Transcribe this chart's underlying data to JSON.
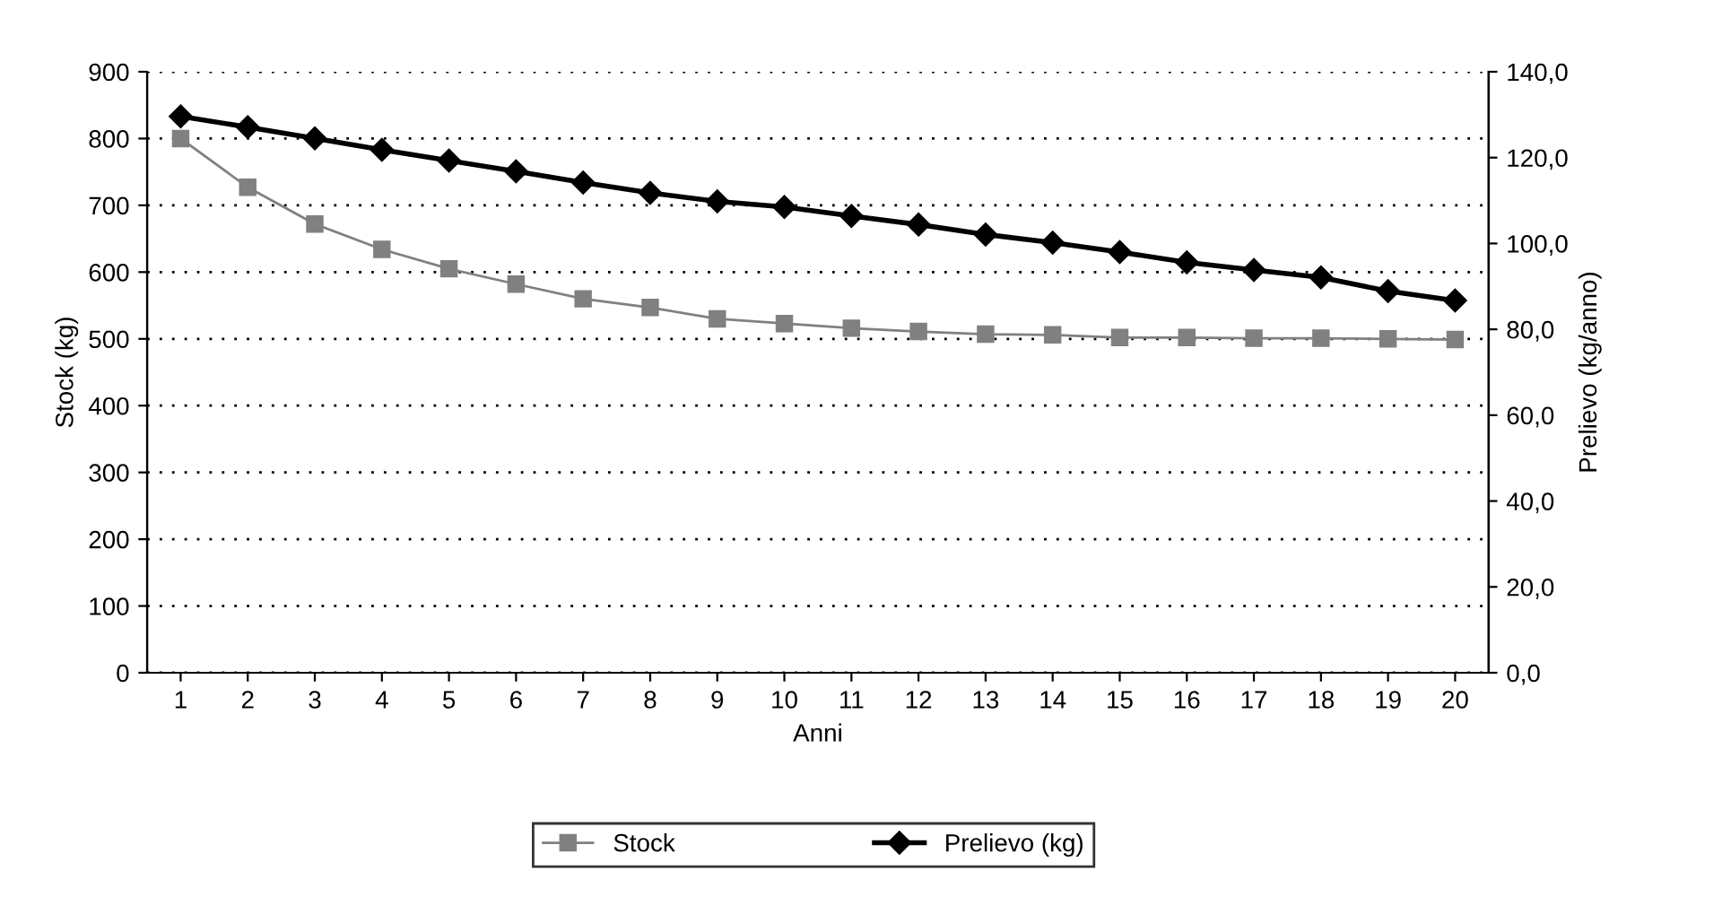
{
  "chart_data": {
    "type": "line",
    "xlabel": "Anni",
    "ylabel": "Stock (kg)",
    "y2label": "Prelievo (kg/anno)",
    "categories": [
      "1",
      "2",
      "3",
      "4",
      "5",
      "6",
      "7",
      "8",
      "9",
      "10",
      "11",
      "12",
      "13",
      "14",
      "15",
      "16",
      "17",
      "18",
      "19",
      "20"
    ],
    "series": [
      {
        "name": "Stock",
        "color": "#808080",
        "marker": "square",
        "values": [
          800,
          727,
          672,
          634,
          605,
          582,
          560,
          547,
          530,
          523,
          516,
          511,
          507,
          506,
          502,
          502,
          501,
          501,
          500,
          499
        ]
      },
      {
        "name": "Prelievo (kg)",
        "color": "#000000",
        "marker": "diamond",
        "axis": "y2",
        "values": [
          129.6,
          127.1,
          124.5,
          121.8,
          119.3,
          116.8,
          114.2,
          111.8,
          109.8,
          108.5,
          106.4,
          104.4,
          102.1,
          100.2,
          98.0,
          95.6,
          93.8,
          92.1,
          88.9,
          86.7
        ]
      }
    ],
    "ylim": [
      0,
      900
    ],
    "yticks": [
      0,
      100,
      200,
      300,
      400,
      500,
      600,
      700,
      800,
      900
    ],
    "y2lim": [
      0,
      140
    ],
    "y2ticks": [
      {
        "value": 0,
        "label": "0,0"
      },
      {
        "value": 20,
        "label": "20,0"
      },
      {
        "value": 40,
        "label": "40,0"
      },
      {
        "value": 60,
        "label": "60,0"
      },
      {
        "value": 80,
        "label": "80,0"
      },
      {
        "value": 100,
        "label": "100,0"
      },
      {
        "value": 120,
        "label": "120,0"
      },
      {
        "value": 140,
        "label": "140,0"
      }
    ],
    "grid": "y",
    "legend": "bottom",
    "line_style": "solid"
  }
}
